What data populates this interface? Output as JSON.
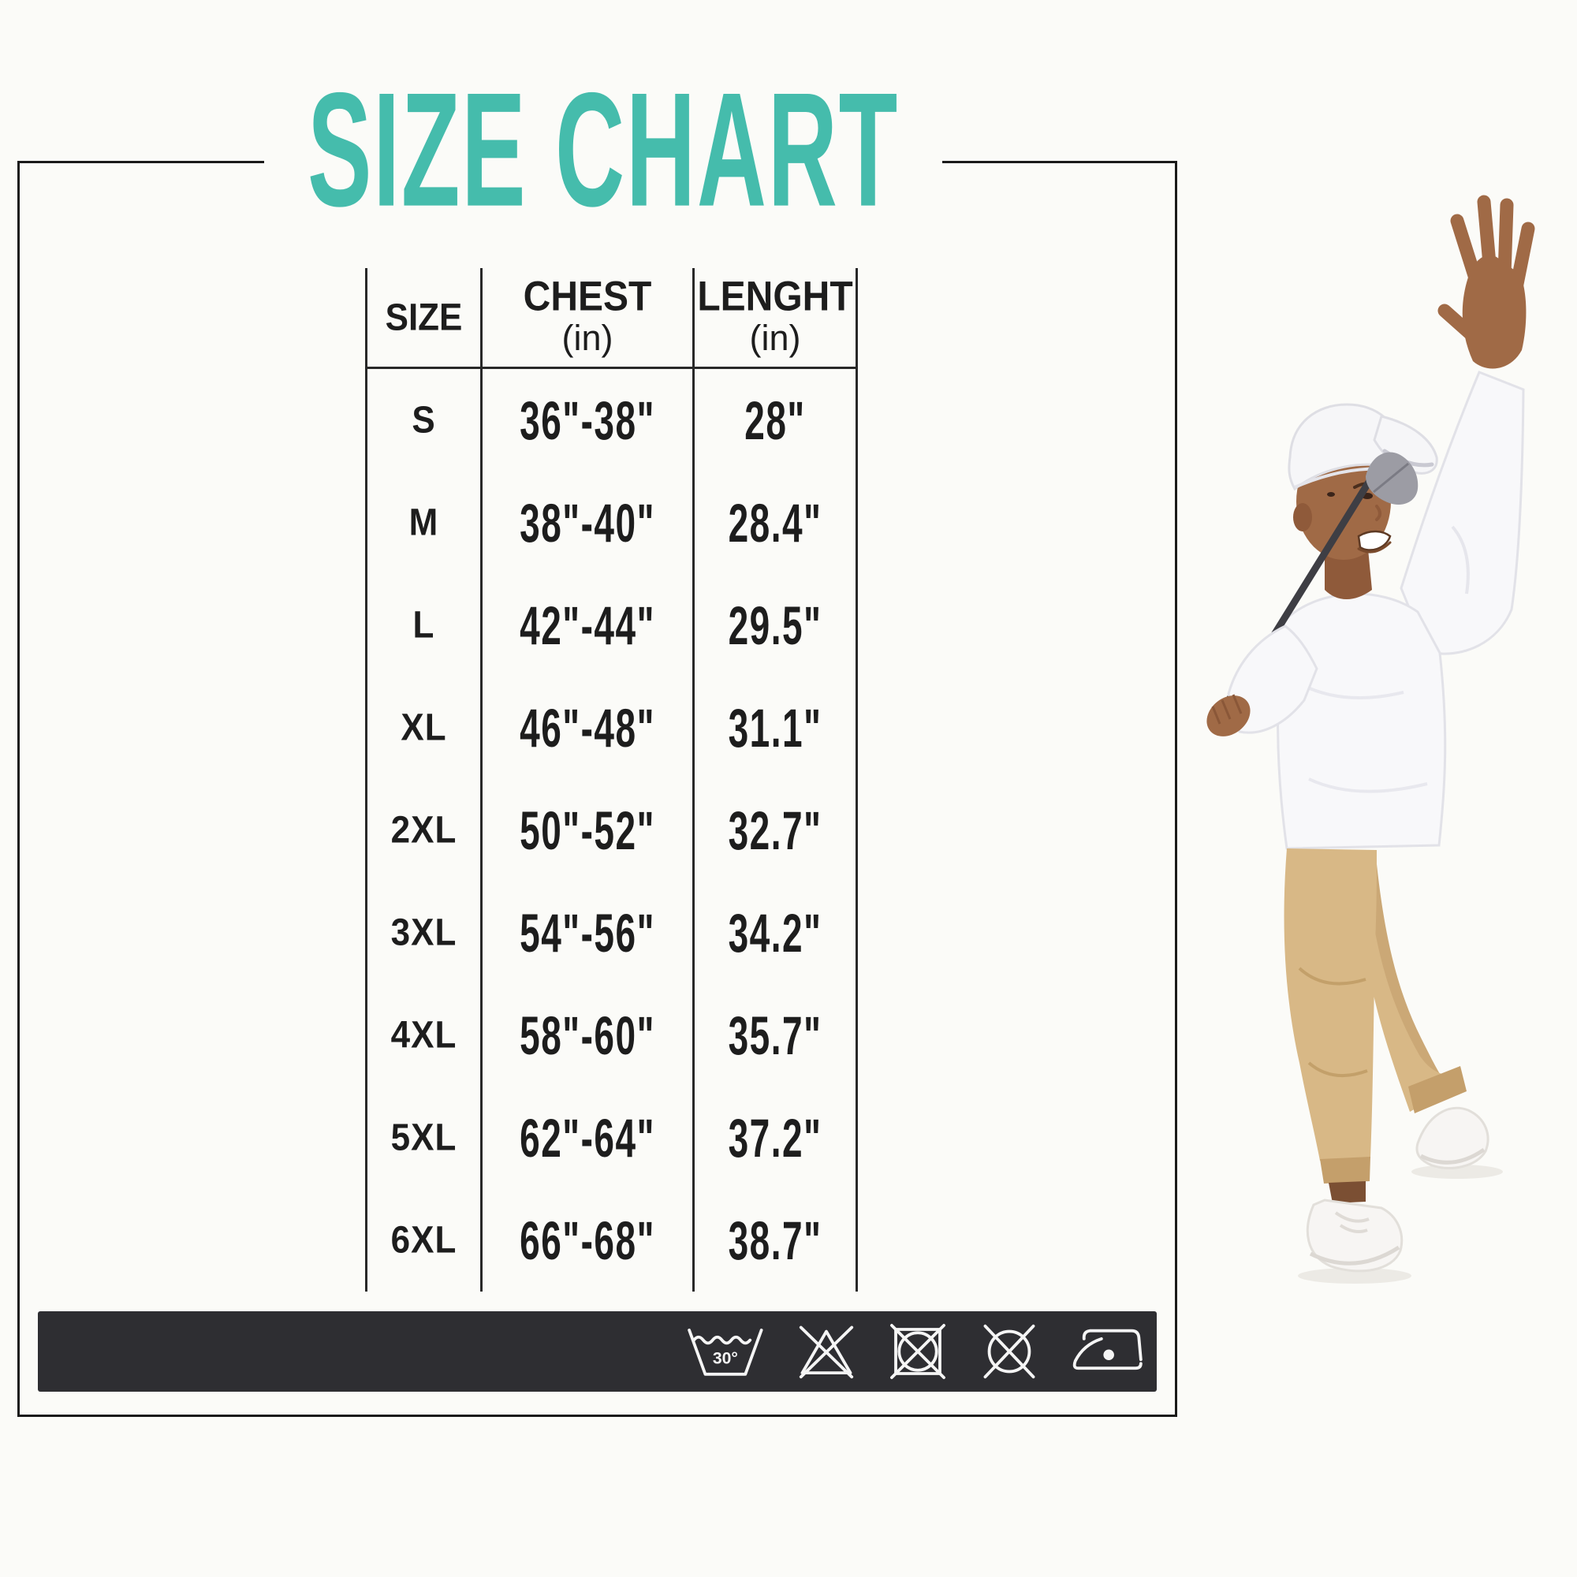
{
  "page": {
    "background": "#FBFBF8"
  },
  "title": {
    "text": "SIZE CHART",
    "color": "#45BCAC"
  },
  "table": {
    "columns": [
      {
        "label": "SIZE",
        "unit": ""
      },
      {
        "label": "CHEST",
        "unit": "(in)"
      },
      {
        "label": "LENGHT",
        "unit": "(in)"
      }
    ],
    "rows": [
      {
        "size": "S",
        "chest": "36\"-38\"",
        "length": "28\""
      },
      {
        "size": "M",
        "chest": "38\"-40\"",
        "length": "28.4\""
      },
      {
        "size": "L",
        "chest": "42\"-44\"",
        "length": "29.5\""
      },
      {
        "size": "XL",
        "chest": "46\"-48\"",
        "length": "31.1\""
      },
      {
        "size": "2XL",
        "chest": "50\"-52\"",
        "length": "32.7\""
      },
      {
        "size": "3XL",
        "chest": "54\"-56\"",
        "length": "34.2\""
      },
      {
        "size": "4XL",
        "chest": "58\"-60\"",
        "length": "35.7\""
      },
      {
        "size": "5XL",
        "chest": "62\"-64\"",
        "length": "37.2\""
      },
      {
        "size": "6XL",
        "chest": "66\"-68\"",
        "length": "38.7\""
      }
    ]
  },
  "care_bar": {
    "background": "#2E2E32",
    "wash_temp": "30°",
    "icons": [
      "machine-wash-30-icon",
      "do-not-bleach-icon",
      "do-not-tumble-dry-icon",
      "do-not-dry-clean-icon",
      "iron-low-heat-icon"
    ]
  },
  "model": {
    "description": "Smiling man in white cap and white long-sleeve golf top with khaki jogger pants and white sneakers, waving with raised left hand and holding a golf club over his shoulder"
  },
  "chart_data": {
    "type": "table",
    "title": "SIZE CHART",
    "columns": [
      "SIZE",
      "CHEST (in)",
      "LENGHT (in)"
    ],
    "rows": [
      [
        "S",
        "36\"-38\"",
        "28\""
      ],
      [
        "M",
        "38\"-40\"",
        "28.4\""
      ],
      [
        "L",
        "42\"-44\"",
        "29.5\""
      ],
      [
        "XL",
        "46\"-48\"",
        "31.1\""
      ],
      [
        "2XL",
        "50\"-52\"",
        "32.7\""
      ],
      [
        "3XL",
        "54\"-56\"",
        "34.2\""
      ],
      [
        "4XL",
        "58\"-60\"",
        "35.7\""
      ],
      [
        "5XL",
        "62\"-64\"",
        "37.2\""
      ],
      [
        "6XL",
        "66\"-68\"",
        "38.7\""
      ]
    ]
  }
}
